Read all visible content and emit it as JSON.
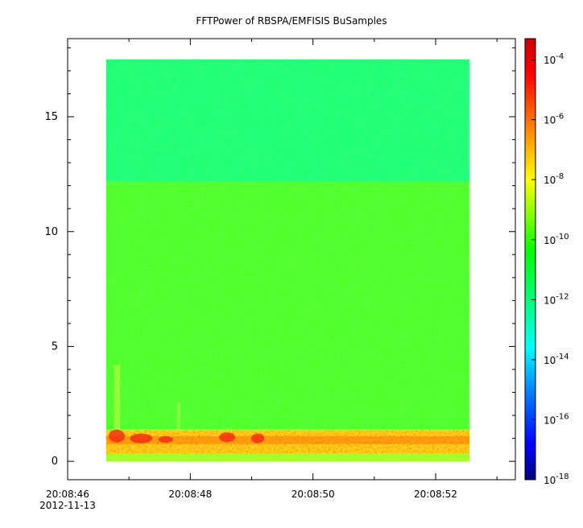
{
  "chart_data": {
    "type": "heatmap",
    "title": "FFTPower of RBSPA/EMFISIS  BuSamples",
    "xlabel": "",
    "ylabel": "",
    "x": {
      "range": [
        "20:08:46",
        "20:08:53.3"
      ],
      "ticks": [
        {
          "value": 46,
          "label": "20:08:46",
          "sublabel": "2012-11-13"
        },
        {
          "value": 48,
          "label": "20:08:48"
        },
        {
          "value": 50,
          "label": "20:08:50"
        },
        {
          "value": 52,
          "label": "20:08:52"
        }
      ],
      "minor_ticks": [
        47,
        49,
        51,
        53
      ]
    },
    "y": {
      "range": [
        -0.8,
        18.4
      ],
      "ticks": [
        0,
        5,
        10,
        15
      ],
      "minor_ticks": [
        1,
        2,
        3,
        4,
        6,
        7,
        8,
        9,
        11,
        12,
        13,
        14,
        16,
        17,
        18
      ]
    },
    "data_extent": {
      "x": [
        46.63,
        52.55
      ],
      "y": [
        0,
        17.5
      ]
    },
    "colorbar": {
      "scale": "log",
      "range_exp": [
        -18,
        -3.3
      ],
      "tick_exponents": [
        -4,
        -6,
        -8,
        -10,
        -12,
        -14,
        -16,
        -18
      ],
      "colormap": [
        "#00007f",
        "#0000ff",
        "#0080ff",
        "#00ffff",
        "#00ff80",
        "#00ff00",
        "#80ff00",
        "#ffff00",
        "#ff8000",
        "#ff0000",
        "#cc0000"
      ]
    },
    "regions": [
      {
        "y": [
          12.2,
          17.5
        ],
        "level_exp": -12.6,
        "description": "upper band"
      },
      {
        "y": [
          0,
          12.2
        ],
        "level_exp": -10.3,
        "description": "main band"
      },
      {
        "y": [
          0.6,
          1.3
        ],
        "level_exp": -6.5,
        "description": "low-frequency emission"
      }
    ],
    "grid": false,
    "legend": "none"
  }
}
